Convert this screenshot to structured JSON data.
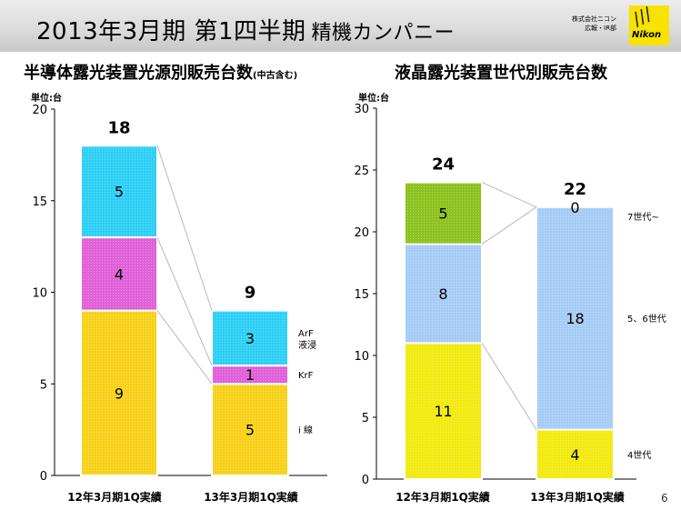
{
  "header": {
    "title": "2013年3月期 第1四半期",
    "subtitle": "精機カンパニー",
    "company_line1": "株式会社ニコン",
    "company_line2": "広報・IR部",
    "logo_text": "Nikon"
  },
  "page_number": "6",
  "chart_data": [
    {
      "type": "bar",
      "stacked": true,
      "title": "半導体露光装置光源別販売台数",
      "title_note": "(中古含む)",
      "unit_label": "単位:台",
      "categories": [
        "12年3月期1Q実績",
        "13年3月期1Q実績"
      ],
      "ylim": [
        0,
        20
      ],
      "yticks": [
        "0",
        "5",
        "10",
        "15",
        "20"
      ],
      "series": [
        {
          "name": "i 線",
          "values": [
            9,
            5
          ],
          "color": "#f7d21a"
        },
        {
          "name": "KrF",
          "values": [
            4,
            1
          ],
          "color": "#e060d8"
        },
        {
          "name": "ArF 液浸",
          "values": [
            5,
            3
          ],
          "color": "#2ecff5"
        }
      ],
      "totals": [
        "18",
        "9"
      ],
      "grid": false
    },
    {
      "type": "bar",
      "stacked": true,
      "title": "液晶露光装置世代別販売台数",
      "unit_label": "単位:台",
      "categories": [
        "12年3月期1Q実績",
        "13年3月期1Q実績"
      ],
      "ylim": [
        0,
        30
      ],
      "yticks": [
        "0",
        "5",
        "10",
        "15",
        "20",
        "25",
        "30"
      ],
      "series": [
        {
          "name": "4世代",
          "values": [
            11,
            4
          ],
          "color": "#f2ea10"
        },
        {
          "name": "5、6世代",
          "values": [
            8,
            18
          ],
          "color": "#a6ccf5"
        },
        {
          "name": "7世代~",
          "values": [
            5,
            0
          ],
          "color": "#8cc21e"
        }
      ],
      "totals": [
        "24",
        "22"
      ],
      "grid": false
    }
  ]
}
